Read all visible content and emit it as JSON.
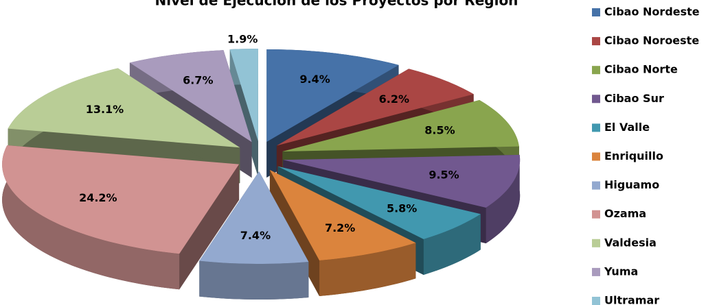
{
  "chart_data": {
    "type": "pie",
    "title": "Nivel de Ejecución de los Proyectos por Región",
    "categories": [
      "Cibao Nordeste",
      "Cibao Noroeste",
      "Cibao Norte",
      "Cibao Sur",
      "El Valle",
      "Enriquillo",
      "Higuamo",
      "Ozama",
      "Valdesia",
      "Yuma",
      "Ultramar"
    ],
    "values": [
      9.4,
      6.2,
      8.5,
      9.5,
      5.8,
      7.2,
      7.4,
      24.2,
      13.1,
      6.7,
      1.9
    ],
    "value_labels": [
      "9.4%",
      "6.2%",
      "8.5%",
      "9.5%",
      "5.8%",
      "7.2%",
      "7.4%",
      "24.2%",
      "13.1%",
      "6.7%",
      "1.9%"
    ],
    "colors": [
      "#4672a8",
      "#aa4644",
      "#89a54e",
      "#71588f",
      "#4198af",
      "#db843d",
      "#93a9cf",
      "#d19392",
      "#b9cd96",
      "#a99bbd",
      "#92c3d5"
    ],
    "legend": "right"
  }
}
